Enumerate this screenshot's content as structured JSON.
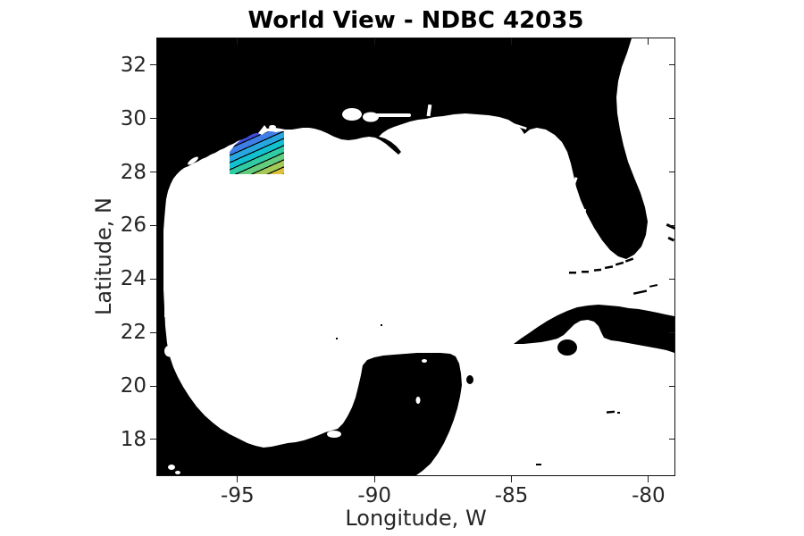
{
  "figure": {
    "title": "World View - NDBC 42035",
    "background_color": "#ffffff"
  },
  "axes": {
    "xlabel": "Longitude, W",
    "ylabel": "Latitude, N",
    "x_ticks": [
      "-95",
      "-90",
      "-85",
      "-80"
    ],
    "x_tick_values": [
      -95,
      -90,
      -85,
      -80
    ],
    "y_ticks": [
      "32",
      "30",
      "28",
      "26",
      "24",
      "22",
      "20",
      "18"
    ],
    "y_tick_values": [
      32,
      30,
      28,
      26,
      24,
      22,
      20,
      18
    ],
    "x_range": [
      -97.93,
      -79.05
    ],
    "y_range": [
      16.66,
      33.0
    ],
    "tick_color": "#1a1a1a",
    "text_color": "#262626"
  },
  "map": {
    "land_color": "#000000",
    "water_color": "#ffffff"
  },
  "contour_overlay": {
    "station": "NDBC 42035",
    "lon_range": [
      -95.4,
      -93.3
    ],
    "lat_range": [
      28.0,
      29.6
    ],
    "band_colors": [
      "#33269C",
      "#3D4FDC",
      "#3E7EE6",
      "#27A6DF",
      "#12C0CF",
      "#2FCBA4",
      "#63CC7E",
      "#A3C957",
      "#DCC33B",
      "#F4A833"
    ],
    "contour_line_color": "#000000"
  }
}
